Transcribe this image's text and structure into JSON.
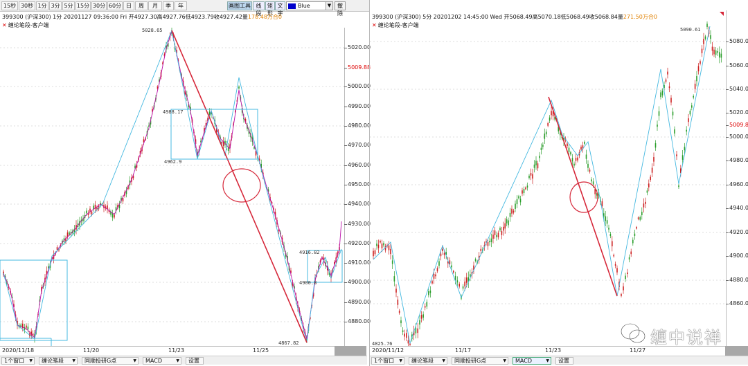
{
  "toolbar": {
    "periods": [
      "15秒",
      "30秒",
      "1分",
      "3分",
      "5分",
      "15分",
      "30分",
      "60分",
      "日",
      "周",
      "月",
      "季",
      "年"
    ],
    "tools": [
      "画图工具",
      "线段",
      "矩形",
      "文字"
    ],
    "color_name": "Blue",
    "color_hex": "#0000cc",
    "clear_label": "撤除"
  },
  "left": {
    "info": {
      "code": "399300 (沪深300)",
      "period": "1分",
      "datetime": "20201127 09:36:00 Fri",
      "prices": "开4927.30高4927.76低4923.79收4927.42量",
      "amount": "178.48万",
      "tail": "合0"
    },
    "indicator": "缠论笔段-客户端",
    "yaxis": [
      {
        "v": "5020.00",
        "y": 69
      },
      {
        "v": "5009.88",
        "y": 98,
        "ref": true
      },
      {
        "v": "5000.00",
        "y": 125
      },
      {
        "v": "4990.00",
        "y": 154
      },
      {
        "v": "4980.00",
        "y": 182
      },
      {
        "v": "4970.00",
        "y": 210
      },
      {
        "v": "4960.00",
        "y": 239
      },
      {
        "v": "4950.00",
        "y": 267
      },
      {
        "v": "4940.00",
        "y": 295
      },
      {
        "v": "4930.00",
        "y": 324
      },
      {
        "v": "4920.00",
        "y": 352
      },
      {
        "v": "4910.00",
        "y": 380
      },
      {
        "v": "4900.00",
        "y": 408
      },
      {
        "v": "4890.00",
        "y": 437
      },
      {
        "v": "4880.00",
        "y": 465
      }
    ],
    "xaxis": [
      {
        "v": "2020/11/18",
        "x": 3
      },
      {
        "v": "11/20",
        "x": 120
      },
      {
        "v": "11/23",
        "x": 243
      },
      {
        "v": "11/25",
        "x": 365
      }
    ],
    "price_labels": {
      "high": "5028.65",
      "box_top": "4988.17",
      "box_bottom": "4962.9",
      "low": "4867.82",
      "box2_top": "4916.82",
      "box2_bottom": "4900.8"
    },
    "bottom": {
      "window": "1个窗口",
      "b1": "缠论笔段",
      "b2": "同顺投研G点",
      "b3": "MACD",
      "b4": "设置"
    }
  },
  "right": {
    "info": {
      "code": "399300 (沪深300)",
      "period": "5分",
      "datetime": "20201202 14:45:00 Wed",
      "prices": "开5068.49高5070.18低5068.49收5068.84量",
      "amount": "271.50万",
      "tail": "合0"
    },
    "indicator": "缠论笔段-客户端",
    "yaxis": [
      {
        "v": "5080.00",
        "y": 60
      },
      {
        "v": "5060.00",
        "y": 95
      },
      {
        "v": "5040.00",
        "y": 129
      },
      {
        "v": "5020.00",
        "y": 163
      },
      {
        "v": "5009.88",
        "y": 181,
        "ref": true
      },
      {
        "v": "5000.00",
        "y": 198
      },
      {
        "v": "4980.00",
        "y": 232
      },
      {
        "v": "4960.00",
        "y": 267
      },
      {
        "v": "4940.00",
        "y": 301
      },
      {
        "v": "4920.00",
        "y": 336
      },
      {
        "v": "4900.00",
        "y": 370
      },
      {
        "v": "4880.00",
        "y": 405
      },
      {
        "v": "4860.00",
        "y": 439
      }
    ],
    "xaxis": [
      {
        "v": "2020/11/12",
        "x": 3
      },
      {
        "v": "11/17",
        "x": 123
      },
      {
        "v": "11/23",
        "x": 253
      },
      {
        "v": "11/27",
        "x": 375
      }
    ],
    "price_labels": {
      "high": "5090.61",
      "low": "4825.76"
    },
    "bottom": {
      "window": "1个窗口",
      "b1": "缠论笔段",
      "b2": "同顺投研G点",
      "b3": "MACD",
      "b4": "设置"
    }
  },
  "watermark": "缠中说禅"
}
